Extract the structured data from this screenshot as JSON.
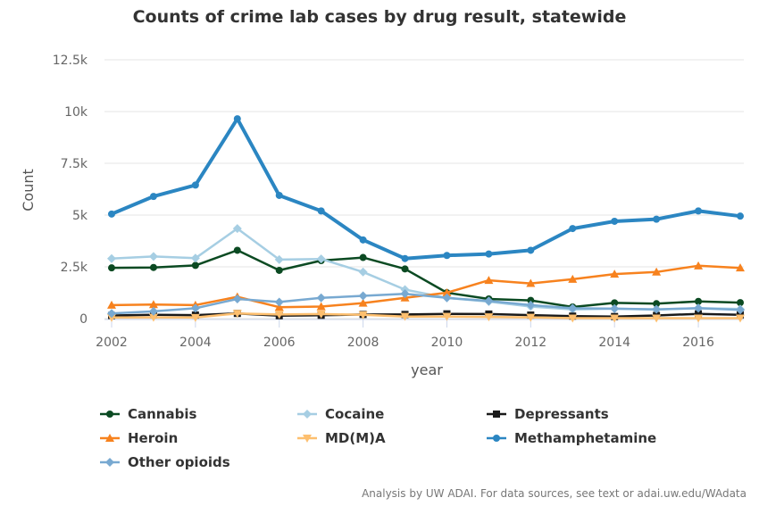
{
  "chart_data": {
    "type": "line",
    "title": "Counts of crime lab cases by drug result, statewide",
    "xlabel": "year",
    "ylabel": "Count",
    "ylim": [
      0,
      12500
    ],
    "xlim": [
      2002,
      2017
    ],
    "y_ticks": [
      "0",
      "2.5k",
      "5k",
      "7.5k",
      "10k",
      "12.5k"
    ],
    "x_ticks": [
      "2002",
      "2004",
      "2006",
      "2008",
      "2010",
      "2012",
      "2014",
      "2016"
    ],
    "y_tick_values": [
      0,
      2500,
      5000,
      7500,
      10000,
      12500
    ],
    "x_tick_values": [
      2002,
      2004,
      2006,
      2008,
      2010,
      2012,
      2014,
      2016
    ],
    "grid": "horizontal",
    "legend_position": "bottom",
    "x": [
      2002,
      2003,
      2004,
      2005,
      2006,
      2007,
      2008,
      2009,
      2010,
      2011,
      2012,
      2013,
      2014,
      2015,
      2016,
      2017
    ],
    "series": [
      {
        "name": "Cannabis",
        "color": "#0b4a22",
        "marker": "circle",
        "width": 2.5,
        "values": [
          2450,
          2470,
          2570,
          3300,
          2330,
          2800,
          2950,
          2400,
          1250,
          950,
          880,
          560,
          760,
          720,
          830,
          770
        ]
      },
      {
        "name": "Cocaine",
        "color": "#a6cee3",
        "marker": "diamond",
        "width": 2.5,
        "values": [
          2900,
          3000,
          2920,
          4350,
          2850,
          2880,
          2250,
          1400,
          1000,
          820,
          580,
          440,
          480,
          430,
          510,
          460
        ]
      },
      {
        "name": "Depressants",
        "color": "#1a1a1a",
        "marker": "square",
        "width": 2.5,
        "values": [
          150,
          180,
          170,
          250,
          140,
          160,
          200,
          200,
          230,
          220,
          170,
          120,
          100,
          150,
          230,
          180
        ]
      },
      {
        "name": "Heroin",
        "color": "#f7821e",
        "marker": "triangle",
        "width": 2.5,
        "values": [
          650,
          680,
          650,
          1050,
          550,
          580,
          750,
          1000,
          1250,
          1850,
          1700,
          1900,
          2150,
          2250,
          2550,
          2450
        ]
      },
      {
        "name": "MD(M)A",
        "color": "#fdbf6f",
        "marker": "triangle-down",
        "width": 2.5,
        "values": [
          50,
          60,
          50,
          250,
          200,
          220,
          180,
          100,
          100,
          80,
          60,
          20,
          20,
          20,
          20,
          20
        ]
      },
      {
        "name": "Methamphetamine",
        "color": "#2b86c2",
        "marker": "circle",
        "width": 4,
        "values": [
          5050,
          5900,
          6450,
          9650,
          5950,
          5200,
          3800,
          2900,
          3050,
          3120,
          3300,
          4350,
          4700,
          4800,
          5200,
          4950
        ]
      },
      {
        "name": "Other opioids",
        "color": "#78a9d1",
        "marker": "diamond",
        "width": 2.5,
        "values": [
          250,
          350,
          500,
          950,
          800,
          1000,
          1100,
          1200,
          1000,
          850,
          650,
          500,
          480,
          450,
          500,
          420
        ]
      }
    ]
  },
  "credits": "Analysis by UW ADAI. For data sources, see text or adai.uw.edu/WAdata"
}
